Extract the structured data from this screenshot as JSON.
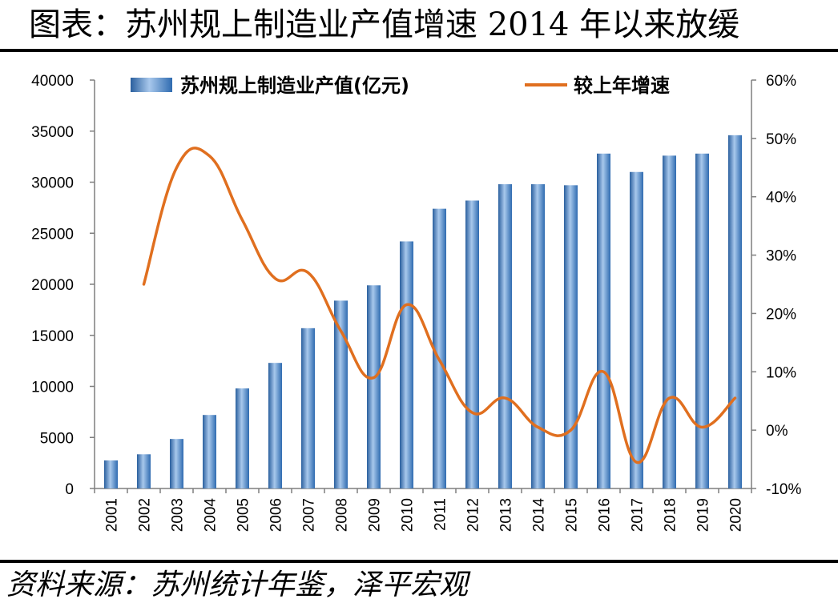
{
  "title": "图表：苏州规上制造业产值增速 2014 年以来放缓",
  "source": "资料来源：苏州统计年鉴，泽平宏观",
  "colors": {
    "bar": "#3f7cc0",
    "bar_light": "#9cc1e8",
    "line": "#e06f1f"
  },
  "chart_data": {
    "type": "bar",
    "categories": [
      "2001",
      "2002",
      "2003",
      "2004",
      "2005",
      "2006",
      "2007",
      "2008",
      "2009",
      "2010",
      "2011",
      "2012",
      "2013",
      "2014",
      "2015",
      "2016",
      "2017",
      "2018",
      "2019",
      "2020"
    ],
    "series": [
      {
        "name": "苏州规上制造业产值(亿元)",
        "type": "bar",
        "axis": "left",
        "values": [
          2750,
          3350,
          4850,
          7200,
          9800,
          12300,
          15700,
          18400,
          19900,
          24200,
          27400,
          28200,
          29800,
          29800,
          29700,
          32800,
          31000,
          32600,
          32800,
          34600
        ]
      },
      {
        "name": "较上年增速",
        "type": "line",
        "axis": "right",
        "values": [
          null,
          25,
          45,
          47,
          36,
          26,
          27,
          17,
          9,
          21.5,
          12,
          3,
          5.5,
          0.5,
          0,
          10,
          -5.5,
          5.5,
          0.5,
          5.5
        ]
      }
    ],
    "y_left": {
      "ylim": [
        0,
        40000
      ],
      "ticks": [
        "0",
        "5000",
        "10000",
        "15000",
        "20000",
        "25000",
        "30000",
        "35000",
        "40000"
      ]
    },
    "y_right": {
      "ylim": [
        -10,
        60
      ],
      "ticks": [
        "-10%",
        "0%",
        "10%",
        "20%",
        "30%",
        "40%",
        "50%",
        "60%"
      ]
    },
    "legend": "top",
    "grid": false
  }
}
